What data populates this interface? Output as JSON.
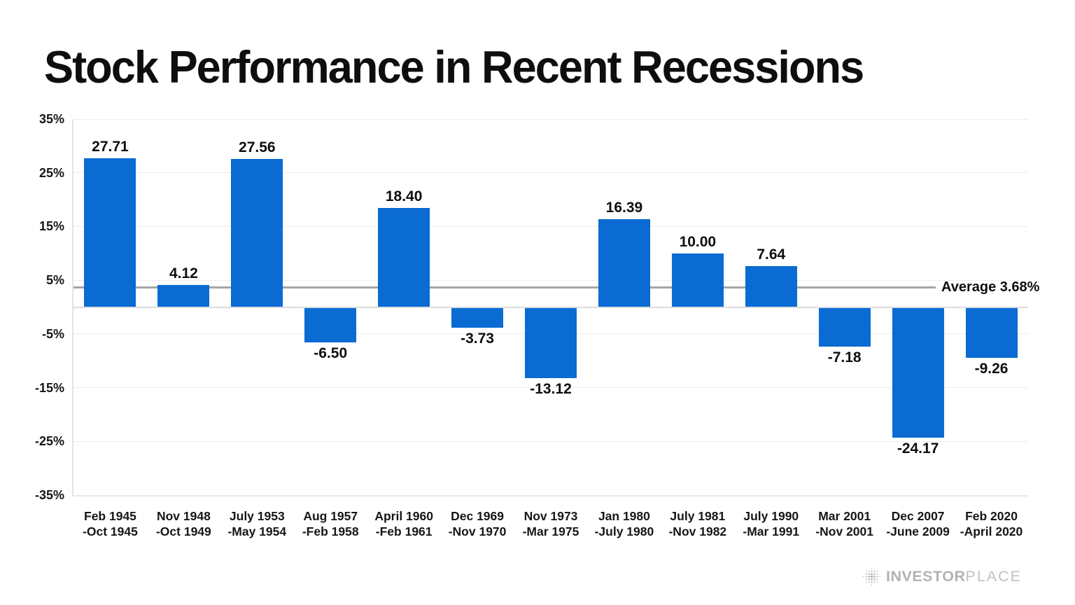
{
  "title": "Stock Performance in Recent Recessions",
  "chart_data": {
    "type": "bar",
    "title": "Stock Performance in Recent Recessions",
    "categories": [
      [
        "Feb 1945",
        "-Oct 1945"
      ],
      [
        "Nov 1948",
        "-Oct 1949"
      ],
      [
        "July 1953",
        "-May 1954"
      ],
      [
        "Aug 1957",
        "-Feb 1958"
      ],
      [
        "April 1960",
        "-Feb 1961"
      ],
      [
        "Dec 1969",
        "-Nov 1970"
      ],
      [
        "Nov 1973",
        "-Mar 1975"
      ],
      [
        "Jan 1980",
        "-July 1980"
      ],
      [
        "July 1981",
        "-Nov 1982"
      ],
      [
        "July 1990",
        "-Mar 1991"
      ],
      [
        "Mar 2001",
        "-Nov 2001"
      ],
      [
        "Dec 2007",
        "-June 2009"
      ],
      [
        "Feb 2020",
        "-April 2020"
      ]
    ],
    "values": [
      27.71,
      4.12,
      27.56,
      -6.5,
      18.4,
      -3.73,
      -13.12,
      16.39,
      10,
      7.64,
      -7.18,
      -24.17,
      -9.26
    ],
    "value_label_decimals": 2,
    "average": 3.68,
    "average_label": "Average 3.68%",
    "ylim": [
      -35,
      35
    ],
    "ytick_step": 10,
    "ytick_labels": [
      "35%",
      "25%",
      "15%",
      "5%",
      "-5%",
      "-15%",
      "-25%",
      "-35%"
    ],
    "grid": true,
    "legend": false,
    "bar_color": "#0a6bd2",
    "average_line_color": "#a5a5a5",
    "grid_color": "#ededed",
    "label_color": "#0e0e0e"
  },
  "footer": {
    "brand_bold": "INVESTOR",
    "brand_light": "PLACE",
    "icon": "dotted-globe-icon",
    "color": "#b5b5b5"
  }
}
